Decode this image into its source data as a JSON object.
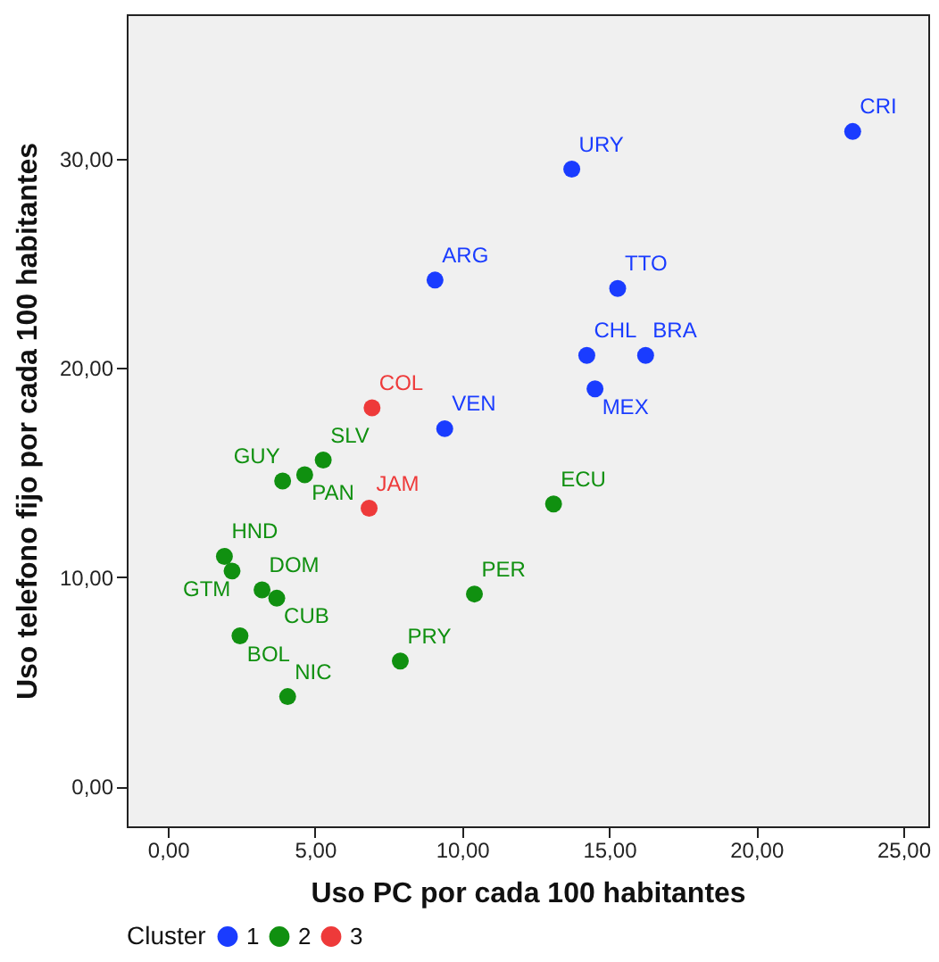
{
  "chart_data": {
    "type": "scatter",
    "xlabel": "Uso PC por cada 100 habitantes",
    "ylabel": "Uso telefono fijo por cada 100 habitantes",
    "legend_title": "Cluster",
    "legend": "bottom",
    "marker": "circle",
    "grid": false,
    "xlim": [
      -1.4,
      25.85
    ],
    "ylim": [
      -1.9,
      36.9
    ],
    "xticks": [
      {
        "value": 0,
        "label": "0,00"
      },
      {
        "value": 5,
        "label": "5,00"
      },
      {
        "value": 10,
        "label": "10,00"
      },
      {
        "value": 15,
        "label": "15,00"
      },
      {
        "value": 20,
        "label": "20,00"
      },
      {
        "value": 25,
        "label": "25,00"
      }
    ],
    "yticks": [
      {
        "value": 0,
        "label": "0,00"
      },
      {
        "value": 10,
        "label": "10,00"
      },
      {
        "value": 20,
        "label": "20,00"
      },
      {
        "value": 30,
        "label": "30,00"
      }
    ],
    "series": [
      {
        "name": "1",
        "color": "#1a3cff",
        "x": [
          9.08,
          9.41,
          23.28,
          13.73,
          15.29,
          14.24,
          16.24,
          14.52
        ],
        "values": [
          24.2,
          17.1,
          31.3,
          29.5,
          23.8,
          20.6,
          20.6,
          19.0
        ],
        "value_labels": [
          "ARG",
          "VEN",
          "CRI",
          "URY",
          "TTO",
          "CHL",
          "BRA",
          "MEX"
        ]
      },
      {
        "name": "2",
        "color": "#109010",
        "x": [
          5.28,
          4.65,
          3.9,
          1.92,
          2.18,
          3.2,
          3.7,
          2.45,
          7.9,
          4.07,
          10.42,
          13.11
        ],
        "values": [
          15.6,
          14.9,
          14.6,
          11.0,
          10.3,
          9.4,
          9.0,
          7.2,
          6.0,
          4.3,
          9.2,
          13.5
        ],
        "value_labels": [
          "SLV",
          "PAN",
          "GUY",
          "HND",
          "GTM",
          "DOM",
          "CUB",
          "BOL",
          "PRY",
          "NIC",
          "PER",
          "ECU"
        ]
      },
      {
        "name": "3",
        "color": "#ee3a3a",
        "x": [
          6.94,
          6.84
        ],
        "values": [
          18.1,
          13.3
        ],
        "value_labels": [
          "COL",
          "JAM"
        ]
      }
    ]
  }
}
